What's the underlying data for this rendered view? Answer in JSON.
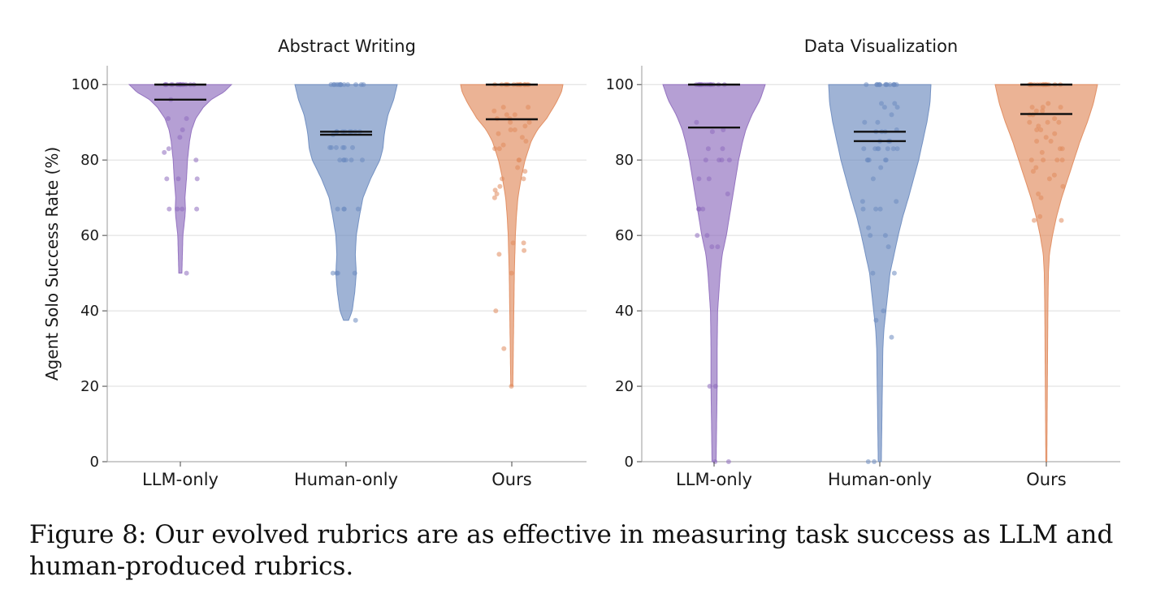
{
  "figure": {
    "caption": "Figure 8: Our evolved rubrics are as effective in measuring task success as LLM and human-produced rubrics.",
    "colors": {
      "LLM-only": "#8e6bbd",
      "Human-only": "#6b8bbf",
      "Ours": "#e08a5c",
      "median": "#111111",
      "grid": "#dddddd"
    }
  },
  "chart_data": [
    {
      "type": "violin",
      "title": "Abstract Writing",
      "ylabel": "Agent Solo Success Rate (%)",
      "xlabel": "",
      "ylim": [
        0,
        105
      ],
      "yticks": [
        0,
        20,
        40,
        60,
        80,
        100
      ],
      "grid": true,
      "categories": [
        "LLM-only",
        "Human-only",
        "Ours"
      ],
      "series": [
        {
          "name": "LLM-only",
          "color": "#8e6bbd",
          "min": 50,
          "max": 100,
          "median_lines": [
            100,
            96
          ],
          "density": [
            [
              50,
              0.03
            ],
            [
              55,
              0.04
            ],
            [
              60,
              0.05
            ],
            [
              65,
              0.09
            ],
            [
              67,
              0.1
            ],
            [
              70,
              0.09
            ],
            [
              75,
              0.12
            ],
            [
              80,
              0.14
            ],
            [
              85,
              0.18
            ],
            [
              88,
              0.22
            ],
            [
              91,
              0.3
            ],
            [
              94,
              0.45
            ],
            [
              96,
              0.6
            ],
            [
              98,
              0.85
            ],
            [
              100,
              1.0
            ]
          ],
          "points": [
            100,
            100,
            100,
            100,
            100,
            100,
            100,
            100,
            100,
            100,
            100,
            100,
            100,
            100,
            100,
            96,
            91,
            91,
            88,
            86,
            83,
            82,
            80,
            75,
            75,
            75,
            67,
            67,
            67,
            67,
            50
          ]
        },
        {
          "name": "Human-only",
          "color": "#6b8bbf",
          "min": 37.5,
          "max": 100,
          "median_lines": [
            87.5,
            86.7
          ],
          "density": [
            [
              37.5,
              0.05
            ],
            [
              40,
              0.12
            ],
            [
              45,
              0.17
            ],
            [
              50,
              0.2
            ],
            [
              55,
              0.18
            ],
            [
              60,
              0.2
            ],
            [
              65,
              0.26
            ],
            [
              70,
              0.33
            ],
            [
              75,
              0.48
            ],
            [
              80,
              0.66
            ],
            [
              83,
              0.72
            ],
            [
              86,
              0.74
            ],
            [
              88,
              0.76
            ],
            [
              92,
              0.82
            ],
            [
              96,
              0.93
            ],
            [
              100,
              1.0
            ]
          ],
          "points": [
            100,
            100,
            100,
            100,
            100,
            100,
            100,
            100,
            100,
            100,
            100,
            100,
            100,
            87.5,
            87.5,
            87.5,
            87.5,
            87.5,
            87.5,
            87.5,
            87.5,
            86.7,
            83.3,
            83.3,
            83.3,
            83.3,
            83.3,
            83.3,
            80,
            80,
            80,
            80,
            80,
            80,
            67,
            67,
            67,
            67,
            50,
            50,
            50,
            50,
            37.5
          ]
        },
        {
          "name": "Ours",
          "color": "#e08a5c",
          "min": 20,
          "max": 100,
          "median_lines": [
            100,
            90.8
          ],
          "density": [
            [
              20,
              0.02
            ],
            [
              30,
              0.03
            ],
            [
              40,
              0.04
            ],
            [
              50,
              0.05
            ],
            [
              55,
              0.06
            ],
            [
              60,
              0.07
            ],
            [
              65,
              0.09
            ],
            [
              70,
              0.12
            ],
            [
              75,
              0.18
            ],
            [
              80,
              0.26
            ],
            [
              85,
              0.38
            ],
            [
              88,
              0.5
            ],
            [
              91,
              0.68
            ],
            [
              95,
              0.86
            ],
            [
              98,
              0.97
            ],
            [
              100,
              1.0
            ]
          ],
          "points": [
            100,
            100,
            100,
            100,
            100,
            100,
            100,
            100,
            100,
            100,
            100,
            100,
            100,
            100,
            94,
            94,
            93,
            92,
            92,
            91,
            91,
            90,
            90,
            89,
            88,
            88,
            87,
            86,
            85,
            84,
            83,
            83,
            80,
            80,
            78,
            77,
            75,
            75,
            73,
            72,
            71,
            70,
            58,
            58,
            56,
            55,
            50,
            40,
            30,
            20
          ]
        }
      ]
    },
    {
      "type": "violin",
      "title": "Data Visualization",
      "ylabel": "",
      "xlabel": "",
      "ylim": [
        0,
        105
      ],
      "yticks": [
        0,
        20,
        40,
        60,
        80,
        100
      ],
      "grid": true,
      "categories": [
        "LLM-only",
        "Human-only",
        "Ours"
      ],
      "series": [
        {
          "name": "LLM-only",
          "color": "#8e6bbd",
          "min": 0,
          "max": 100,
          "median_lines": [
            100,
            88.6
          ],
          "density": [
            [
              0,
              0.04
            ],
            [
              10,
              0.05
            ],
            [
              20,
              0.06
            ],
            [
              30,
              0.06
            ],
            [
              40,
              0.07
            ],
            [
              50,
              0.12
            ],
            [
              55,
              0.16
            ],
            [
              60,
              0.24
            ],
            [
              65,
              0.3
            ],
            [
              70,
              0.36
            ],
            [
              75,
              0.42
            ],
            [
              80,
              0.48
            ],
            [
              85,
              0.56
            ],
            [
              88,
              0.62
            ],
            [
              92,
              0.74
            ],
            [
              96,
              0.9
            ],
            [
              100,
              1.0
            ]
          ],
          "points": [
            100,
            100,
            100,
            100,
            100,
            100,
            100,
            100,
            100,
            100,
            100,
            100,
            100,
            100,
            90,
            88,
            87.5,
            83,
            83,
            80,
            80,
            80,
            80,
            75,
            75,
            71,
            67,
            67,
            67,
            60,
            60,
            57,
            57,
            20,
            20,
            0,
            0
          ]
        },
        {
          "name": "Human-only",
          "color": "#6b8bbf",
          "min": 0,
          "max": 100,
          "median_lines": [
            87.5,
            85
          ],
          "density": [
            [
              0,
              0.03
            ],
            [
              10,
              0.04
            ],
            [
              20,
              0.05
            ],
            [
              30,
              0.06
            ],
            [
              35,
              0.08
            ],
            [
              40,
              0.12
            ],
            [
              50,
              0.2
            ],
            [
              55,
              0.28
            ],
            [
              60,
              0.36
            ],
            [
              65,
              0.45
            ],
            [
              70,
              0.56
            ],
            [
              75,
              0.66
            ],
            [
              80,
              0.76
            ],
            [
              85,
              0.84
            ],
            [
              90,
              0.92
            ],
            [
              95,
              0.98
            ],
            [
              100,
              1.0
            ]
          ],
          "points": [
            100,
            100,
            100,
            100,
            100,
            100,
            100,
            100,
            100,
            100,
            100,
            100,
            100,
            100,
            95,
            95,
            94,
            94,
            92,
            90,
            90,
            88,
            87.5,
            87.5,
            87.5,
            85,
            85,
            85,
            83,
            83,
            83,
            83,
            83,
            83,
            83,
            80,
            80,
            80,
            80,
            80,
            78,
            75,
            69,
            69,
            67,
            67,
            67,
            62,
            60,
            60,
            57,
            50,
            50,
            40,
            37.5,
            33,
            0,
            0
          ]
        },
        {
          "name": "Ours",
          "color": "#e08a5c",
          "min": 0,
          "max": 100,
          "median_lines": [
            100,
            92.2
          ],
          "density": [
            [
              0,
              0.01
            ],
            [
              20,
              0.02
            ],
            [
              40,
              0.03
            ],
            [
              50,
              0.04
            ],
            [
              55,
              0.06
            ],
            [
              60,
              0.12
            ],
            [
              65,
              0.2
            ],
            [
              70,
              0.3
            ],
            [
              75,
              0.42
            ],
            [
              80,
              0.54
            ],
            [
              85,
              0.66
            ],
            [
              90,
              0.8
            ],
            [
              95,
              0.92
            ],
            [
              100,
              1.0
            ]
          ],
          "points": [
            100,
            100,
            100,
            100,
            100,
            100,
            100,
            100,
            100,
            100,
            100,
            100,
            100,
            100,
            95,
            94,
            94,
            94,
            93,
            93,
            92,
            92,
            91,
            90,
            90,
            90,
            89,
            88,
            88,
            87,
            86,
            85,
            85,
            83,
            83,
            82,
            80,
            80,
            80,
            80,
            78,
            77,
            76,
            75,
            73,
            71,
            70,
            65,
            64,
            64
          ]
        }
      ]
    }
  ]
}
